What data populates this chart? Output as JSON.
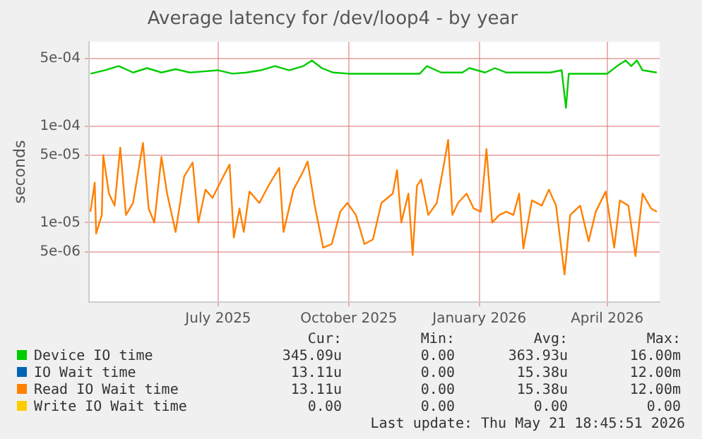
{
  "chart_data": {
    "type": "line",
    "title": "Average latency for /dev/loop4 - by year",
    "ylabel": "seconds",
    "log": "y",
    "grid": true,
    "legend": "bottom",
    "marker": "none",
    "line_style": "solid",
    "xlim": [
      "2025-04-01",
      "2026-05-08"
    ],
    "xticks": [
      {
        "value": "2025-07-01",
        "label": "July 2025"
      },
      {
        "value": "2025-10-01",
        "label": "October 2025"
      },
      {
        "value": "2026-01-01",
        "label": "January 2026"
      },
      {
        "value": "2026-04-01",
        "label": "April 2026"
      }
    ],
    "ylim": [
      1.5e-06,
      0.00075
    ],
    "yticks": [
      {
        "value": 5e-06,
        "label": "5e-06"
      },
      {
        "value": 1e-05,
        "label": "1e-05"
      },
      {
        "value": 5e-05,
        "label": "5e-05"
      },
      {
        "value": 0.0001,
        "label": "1e-04"
      },
      {
        "value": 0.0005,
        "label": "5e-04"
      }
    ],
    "series": [
      {
        "name": "Device IO time",
        "color": "#00cc00",
        "x": [
          "2025-04-02",
          "2025-04-12",
          "2025-04-22",
          "2025-05-02",
          "2025-05-12",
          "2025-05-22",
          "2025-06-01",
          "2025-06-11",
          "2025-06-21",
          "2025-07-01",
          "2025-07-11",
          "2025-07-21",
          "2025-07-31",
          "2025-08-10",
          "2025-08-20",
          "2025-08-30",
          "2025-09-05",
          "2025-09-12",
          "2025-09-20",
          "2025-10-01",
          "2025-10-15",
          "2025-11-01",
          "2025-11-20",
          "2025-11-25",
          "2025-12-05",
          "2025-12-20",
          "2025-12-25",
          "2026-01-05",
          "2026-01-12",
          "2026-01-20",
          "2026-02-10",
          "2026-02-20",
          "2026-02-28",
          "2026-03-03",
          "2026-03-05",
          "2026-03-20",
          "2026-04-01",
          "2026-04-08",
          "2026-04-14",
          "2026-04-18",
          "2026-04-22",
          "2026-04-26",
          "2026-05-06"
        ],
        "values": [
          0.00035,
          0.00038,
          0.00042,
          0.00036,
          0.0004,
          0.00036,
          0.00039,
          0.00036,
          0.00037,
          0.00038,
          0.00035,
          0.00036,
          0.00038,
          0.00042,
          0.00038,
          0.00042,
          0.00048,
          0.0004,
          0.00036,
          0.00035,
          0.00035,
          0.00035,
          0.00035,
          0.00042,
          0.00036,
          0.00036,
          0.0004,
          0.00036,
          0.0004,
          0.00036,
          0.00036,
          0.00036,
          0.00038,
          0.000155,
          0.00035,
          0.00035,
          0.00035,
          0.00042,
          0.00048,
          0.00042,
          0.00048,
          0.00038,
          0.00036
        ]
      },
      {
        "name": "IO Wait time",
        "color": "#0066b3"
      },
      {
        "name": "Read IO Wait time",
        "color": "#ff8000",
        "x": [
          "2025-04-02",
          "2025-04-05",
          "2025-04-06",
          "2025-04-10",
          "2025-04-11",
          "2025-04-15",
          "2025-04-19",
          "2025-04-23",
          "2025-04-27",
          "2025-05-02",
          "2025-05-09",
          "2025-05-13",
          "2025-05-17",
          "2025-05-22",
          "2025-05-26",
          "2025-06-01",
          "2025-06-07",
          "2025-06-13",
          "2025-06-17",
          "2025-06-22",
          "2025-06-27",
          "2025-07-04",
          "2025-07-09",
          "2025-07-12",
          "2025-07-16",
          "2025-07-19",
          "2025-07-23",
          "2025-07-30",
          "2025-08-06",
          "2025-08-13",
          "2025-08-16",
          "2025-08-23",
          "2025-08-29",
          "2025-09-02",
          "2025-09-07",
          "2025-09-13",
          "2025-09-19",
          "2025-09-25",
          "2025-09-30",
          "2025-10-06",
          "2025-10-12",
          "2025-10-18",
          "2025-10-24",
          "2025-11-01",
          "2025-11-04",
          "2025-11-07",
          "2025-11-12",
          "2025-11-15",
          "2025-11-18",
          "2025-11-21",
          "2025-11-26",
          "2025-12-02",
          "2025-12-07",
          "2025-12-10",
          "2025-12-13",
          "2025-12-17",
          "2025-12-23",
          "2025-12-28",
          "2026-01-02",
          "2026-01-06",
          "2026-01-10",
          "2026-01-15",
          "2026-01-20",
          "2026-01-25",
          "2026-01-29",
          "2026-02-01",
          "2026-02-07",
          "2026-02-14",
          "2026-02-19",
          "2026-02-24",
          "2026-03-02",
          "2026-03-06",
          "2026-03-13",
          "2026-03-19",
          "2026-03-24",
          "2026-03-31",
          "2026-04-06",
          "2026-04-10",
          "2026-04-16",
          "2026-04-21",
          "2026-04-26",
          "2026-05-02",
          "2026-05-06"
        ],
        "values": [
          1.3e-05,
          2.6e-05,
          7.7e-06,
          1.2e-05,
          5e-05,
          2e-05,
          1.5e-05,
          6e-05,
          1.2e-05,
          1.6e-05,
          6.7e-05,
          1.4e-05,
          1e-05,
          4.8e-05,
          2e-05,
          8e-06,
          3e-05,
          4.2e-05,
          1e-05,
          2.2e-05,
          1.8e-05,
          2.9e-05,
          4e-05,
          7e-06,
          1.4e-05,
          8e-06,
          2.1e-05,
          1.6e-05,
          2.5e-05,
          3.7e-05,
          8e-06,
          2.2e-05,
          3.2e-05,
          4.3e-05,
          1.5e-05,
          5.5e-06,
          6e-06,
          1.3e-05,
          1.6e-05,
          1.2e-05,
          6e-06,
          6.7e-06,
          1.6e-05,
          2e-05,
          3.5e-05,
          1e-05,
          2e-05,
          4.6e-06,
          2.4e-05,
          2.8e-05,
          1.2e-05,
          1.6e-05,
          4e-05,
          7.2e-05,
          1.2e-05,
          1.6e-05,
          2e-05,
          1.4e-05,
          1.3e-05,
          5.8e-05,
          1e-05,
          1.2e-05,
          1.3e-05,
          1.2e-05,
          2e-05,
          5.4e-06,
          1.7e-05,
          1.5e-05,
          2.2e-05,
          1.5e-05,
          2.9e-06,
          1.2e-05,
          1.5e-05,
          6.4e-06,
          1.3e-05,
          2.1e-05,
          5.5e-06,
          1.7e-05,
          1.5e-05,
          4.5e-06,
          2e-05,
          1.4e-05,
          1.3e-05
        ]
      },
      {
        "name": "Write IO Wait time",
        "color": "#ffcc00"
      }
    ],
    "annotations": [
      "Cur:",
      "Min:",
      "Avg:",
      "Max:",
      "345.09u",
      "0.00",
      "363.93u",
      "16.00m",
      "13.11u",
      "0.00",
      "15.38u",
      "12.00m",
      "13.11u",
      "0.00",
      "15.38u",
      "12.00m",
      "0.00",
      "0.00",
      "0.00",
      "0.00",
      "Last update: Thu May 21 18:45:51 2026"
    ]
  }
}
